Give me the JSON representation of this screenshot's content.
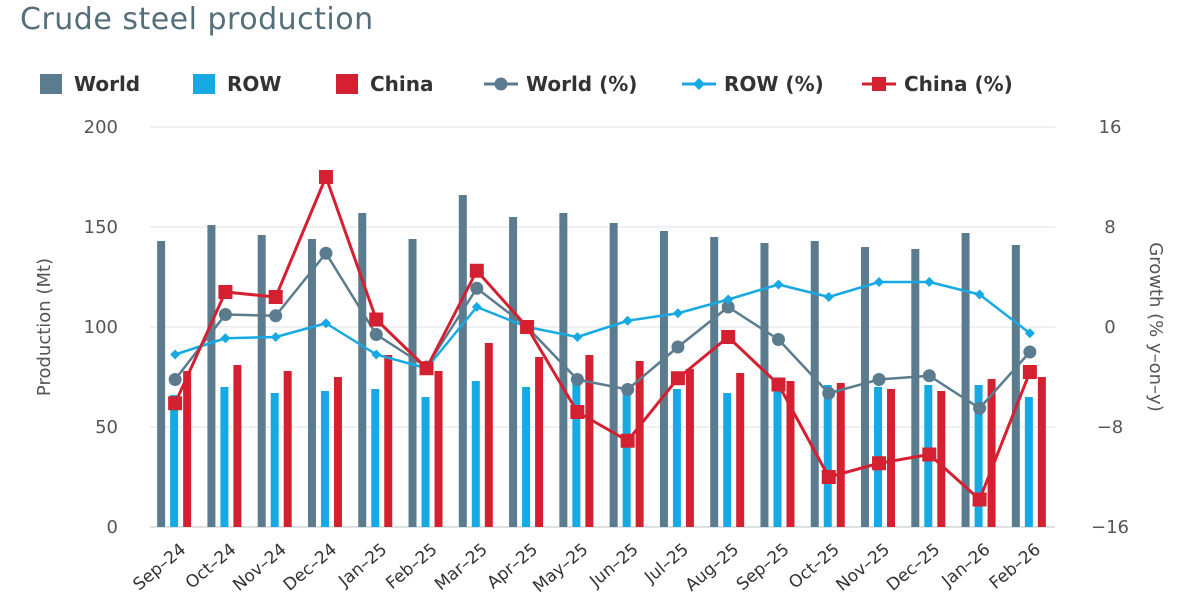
{
  "chart_data": {
    "type": "bar",
    "title": "Crude steel production",
    "categories": [
      "Sep–24",
      "Oct–24",
      "Nov–24",
      "Dec–24",
      "Jan–25",
      "Feb–25",
      "Mar–25",
      "Apr–25",
      "May–25",
      "Jun–25",
      "Jul–25",
      "Aug–25",
      "Sep–25",
      "Oct–25",
      "Nov–25",
      "Dec–25",
      "Jan–26",
      "Feb–26"
    ],
    "ylabel": "Production (Mt)",
    "y2label": "Growth (% y–on–y)",
    "ylim": [
      0,
      200
    ],
    "yticks": [
      0,
      50,
      100,
      150,
      200
    ],
    "y2lim": [
      -16,
      16
    ],
    "y2ticks": [
      "−16",
      "−8",
      "0",
      "8",
      "16"
    ],
    "y2tick_values": [
      -16,
      -8,
      0,
      8,
      16
    ],
    "legend_position": "top",
    "bar_series": [
      {
        "name": "World",
        "color": "#5b7b8e",
        "values": [
          143,
          151,
          146,
          144,
          157,
          144,
          166,
          155,
          157,
          152,
          148,
          145,
          142,
          143,
          140,
          139,
          147,
          141
        ]
      },
      {
        "name": "ROW",
        "color": "#17a9e3",
        "values": [
          66,
          70,
          67,
          68,
          69,
          65,
          73,
          70,
          72,
          68,
          69,
          67,
          71,
          71,
          70,
          71,
          71,
          65
        ]
      },
      {
        "name": "China",
        "color": "#d42030",
        "values": [
          78,
          81,
          78,
          75,
          86,
          78,
          92,
          85,
          86,
          83,
          79,
          77,
          73,
          72,
          69,
          68,
          74,
          75
        ]
      }
    ],
    "line_series": [
      {
        "name": "World (%)",
        "color": "#5b7b8e",
        "marker": "circle",
        "values": [
          -4.2,
          1.0,
          0.9,
          5.9,
          -0.6,
          -3.2,
          3.1,
          0.0,
          -4.2,
          -5.0,
          -1.6,
          1.6,
          -1.0,
          -5.3,
          -4.2,
          -3.9,
          -6.5,
          -2.0
        ]
      },
      {
        "name": "ROW (%)",
        "color": "#17a9e3",
        "marker": "diamond",
        "values": [
          -2.2,
          -0.9,
          -0.8,
          0.3,
          -2.2,
          -3.3,
          1.6,
          0.0,
          -0.8,
          0.5,
          1.1,
          2.2,
          3.4,
          2.4,
          3.6,
          3.6,
          2.6,
          -0.5
        ]
      },
      {
        "name": "China (%)",
        "color": "#d42030",
        "marker": "square",
        "values": [
          -6.1,
          2.8,
          2.4,
          12.0,
          0.6,
          -3.3,
          4.5,
          0.0,
          -6.8,
          -9.1,
          -4.1,
          -0.8,
          -4.6,
          -12.0,
          -10.9,
          -10.2,
          -13.8,
          -3.6
        ]
      }
    ]
  }
}
